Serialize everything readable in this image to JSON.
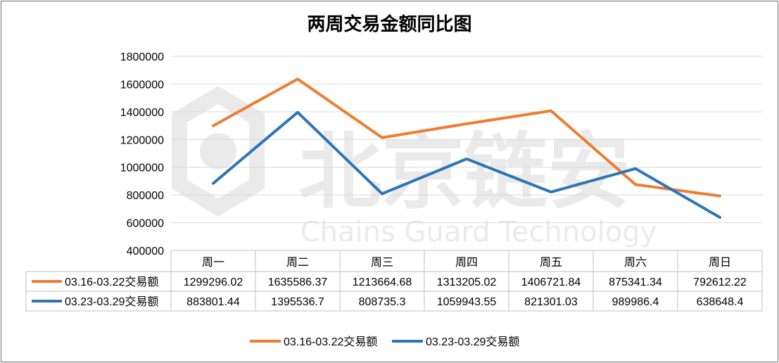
{
  "title": "两周交易金额同比图",
  "watermark": {
    "cn": "北京链安",
    "en": "Chains Guard Technology"
  },
  "colors": {
    "series1": "#ED7D31",
    "series2": "#2E75B6",
    "grid": "#D9D9D9",
    "border": "#BFBFBF"
  },
  "chart_data": {
    "type": "line",
    "title": "两周交易金额同比图",
    "categories": [
      "周一",
      "周二",
      "周三",
      "周四",
      "周五",
      "周六",
      "周日"
    ],
    "yticks": [
      "400000",
      "600000",
      "800000",
      "1000000",
      "1200000",
      "1400000",
      "1600000",
      "1800000"
    ],
    "ylim": [
      400000,
      1800000
    ],
    "grid": true,
    "legend_position": "bottom",
    "series": [
      {
        "name": "03.16-03.22交易额",
        "values": [
          1299296.02,
          1635586.37,
          1213664.68,
          1313205.02,
          1406721.84,
          875341.34,
          792612.22
        ],
        "labels": [
          "1299296.02",
          "1635586.37",
          "1213664.68",
          "1313205.02",
          "1406721.84",
          "875341.34",
          "792612.22"
        ]
      },
      {
        "name": "03.23-03.29交易额",
        "values": [
          883801.44,
          1395536.7,
          808735.3,
          1059943.55,
          821301.03,
          989986.4,
          638648.4
        ],
        "labels": [
          "883801.44",
          "1395536.7",
          "808735.3",
          "1059943.55",
          "821301.03",
          "989986.4",
          "638648.4"
        ]
      }
    ]
  }
}
